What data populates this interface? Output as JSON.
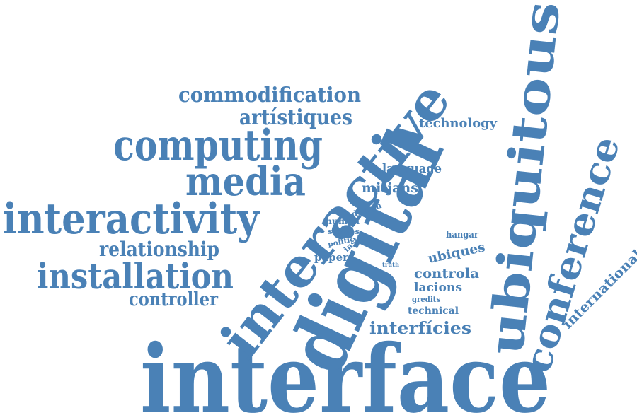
{
  "word_cloud": {
    "color": "#4a81b6",
    "words": {
      "interface": "interface",
      "digital": "digital",
      "interactive": "interactive",
      "ubiquitous": "ubiquitous",
      "interactivity": "interactivity",
      "computing": "computing",
      "installation": "installation",
      "media": "media",
      "conference": "conference",
      "commodification": "commodification",
      "artistiques": "artístiques",
      "relationship": "relationship",
      "controller": "controller",
      "technology": "technology",
      "language": "language",
      "mitjans": "mitjans",
      "design": "design",
      "human": "human",
      "stories": "stories",
      "politic": "politic",
      "instal": "instal",
      "paper": "paper",
      "truth": "truth",
      "hangar": "hangar",
      "ubiques": "ubiques",
      "controla": "controla",
      "lacions": "lacions",
      "gredits": "gredits",
      "technical": "technical",
      "interficies": "interfícies",
      "international": "international"
    }
  }
}
